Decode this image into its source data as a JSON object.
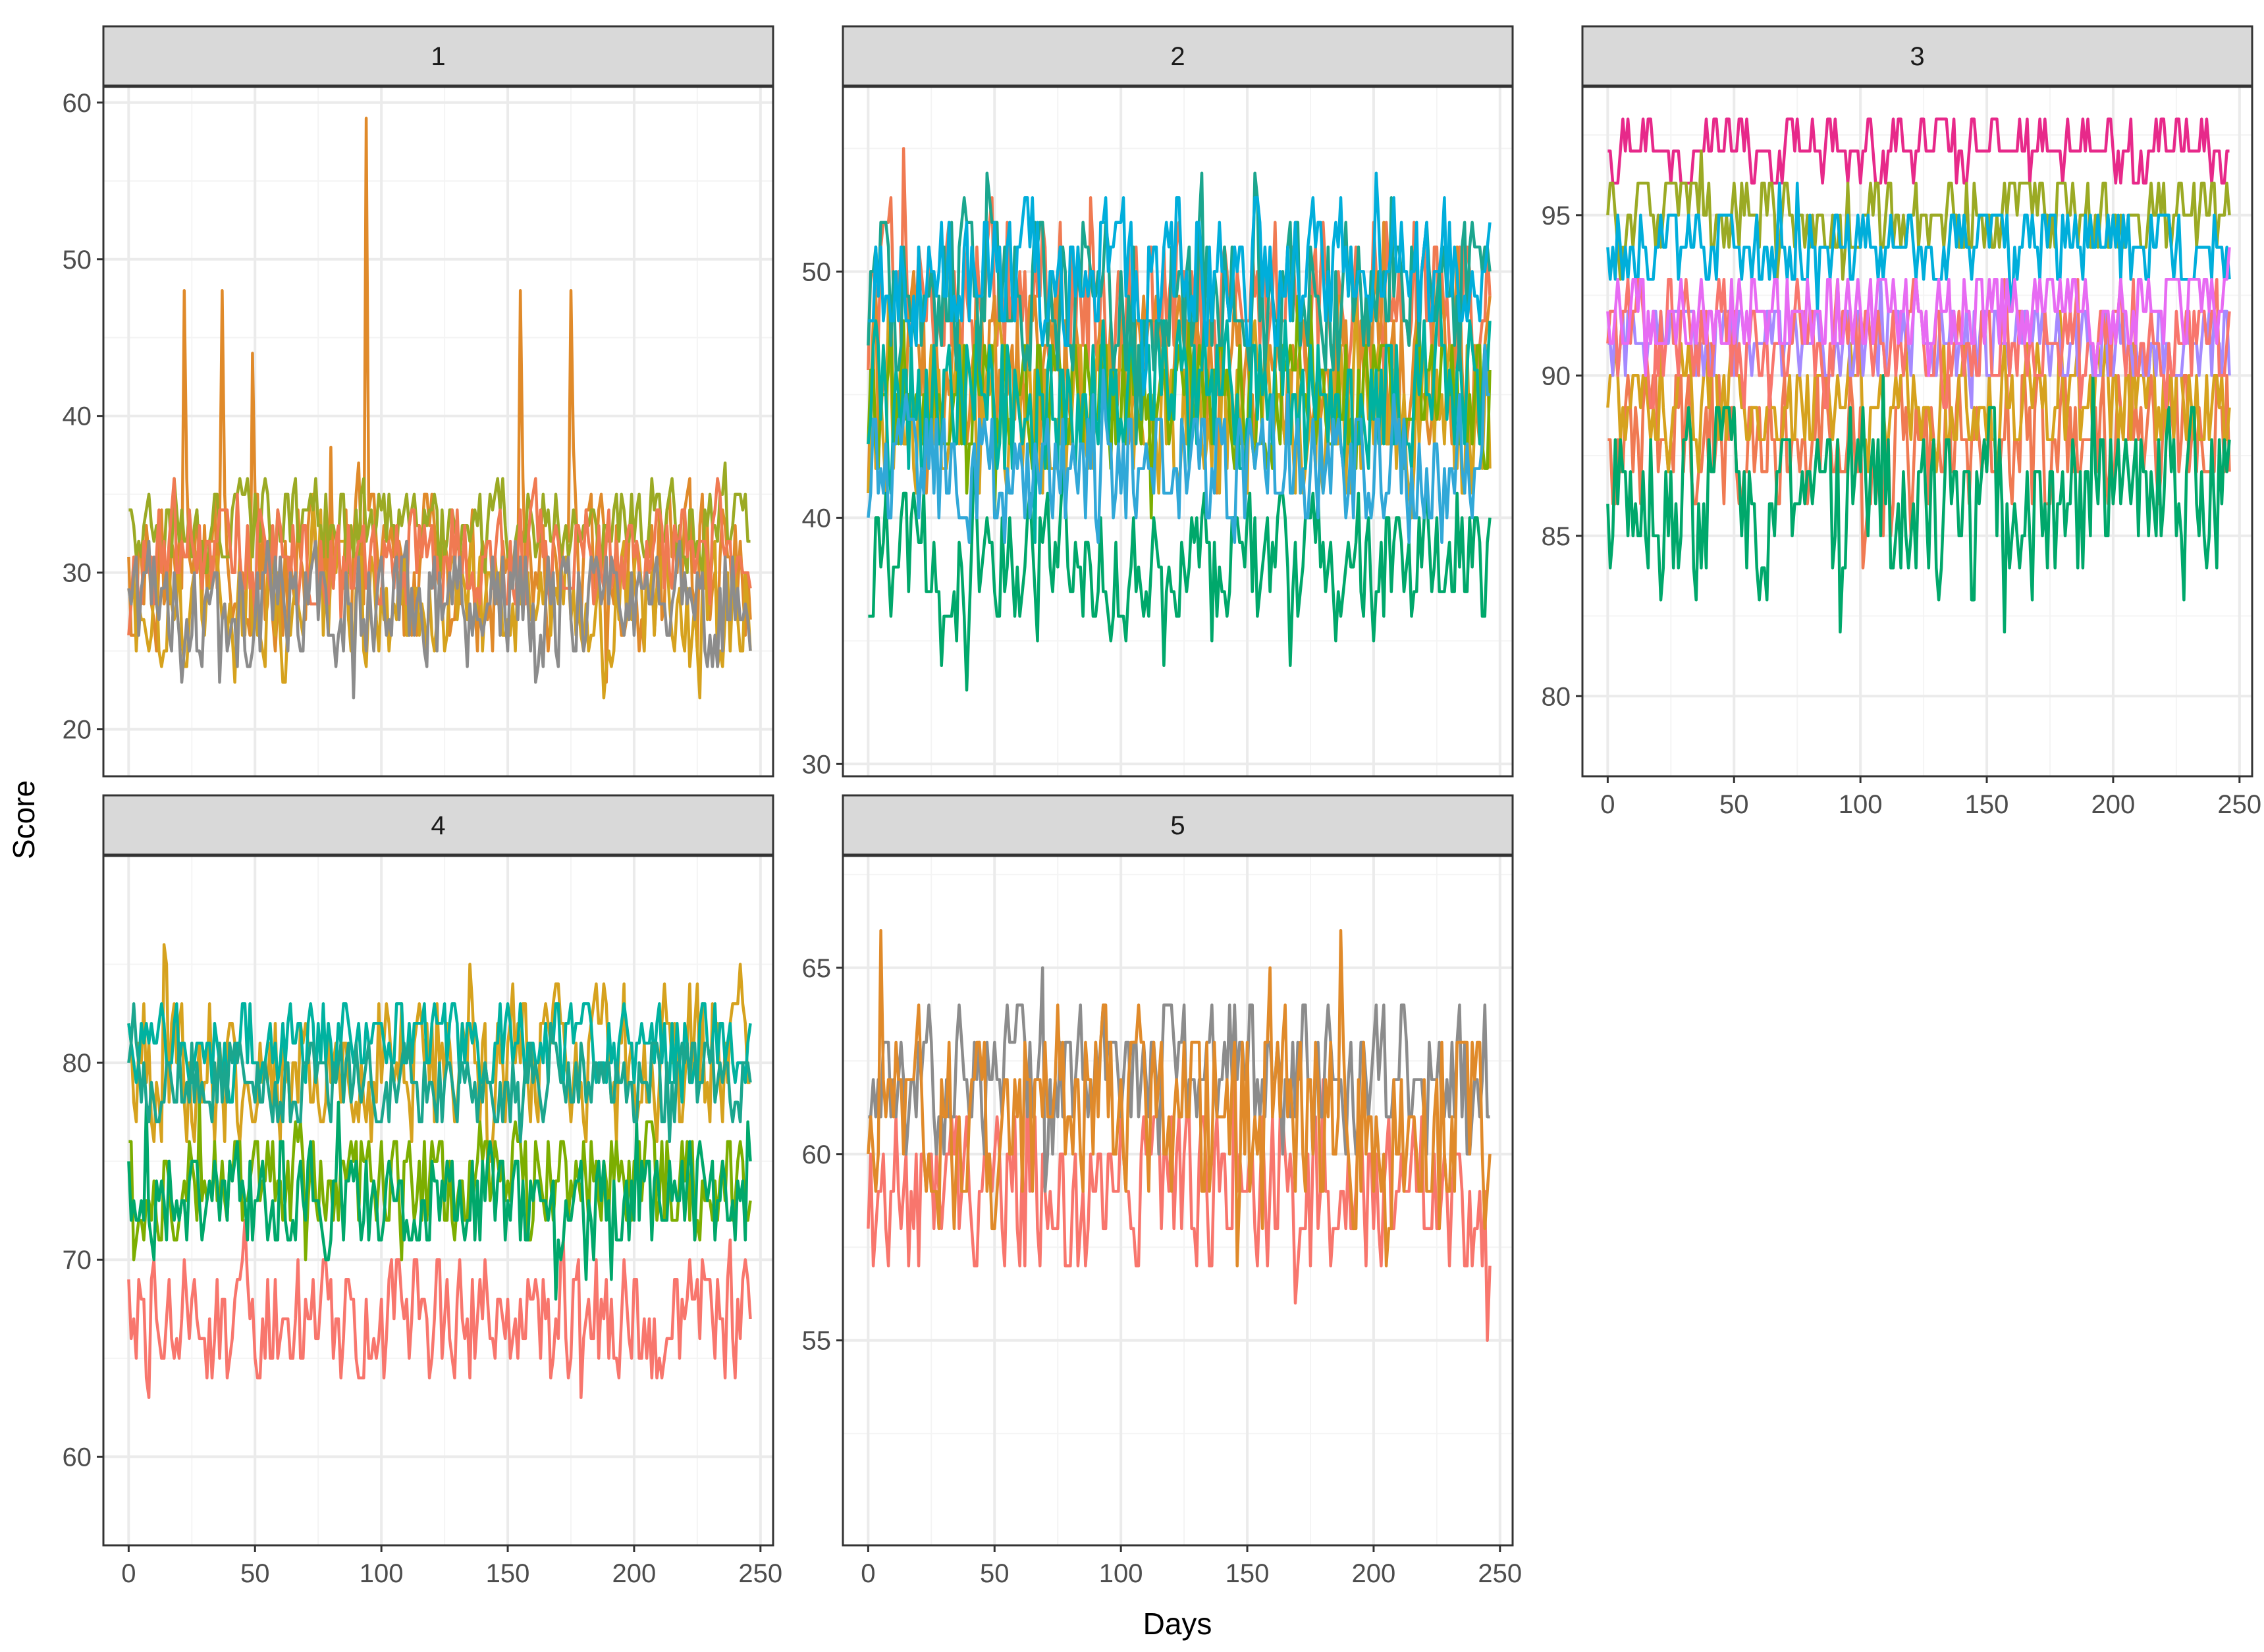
{
  "chart_data": {
    "type": "line",
    "layout": "facet_wrap",
    "xlabel": "Days",
    "ylabel": "Score",
    "grid": true,
    "legend": "none",
    "background": "#ffffff",
    "strip_color": "#d9d9d9",
    "panels": [
      {
        "label": "1",
        "xlim": [
          -10,
          255
        ],
        "x_ticks": [
          0,
          50,
          100,
          150,
          200,
          250
        ],
        "ylim": [
          17,
          61
        ],
        "y_ticks": [
          20,
          30,
          40,
          50,
          60
        ],
        "show_x_axis": false,
        "series": [
          {
            "color": "#E08A2A",
            "base": 30,
            "noise": 4.5,
            "min": 18,
            "max": 59,
            "spikes": [
              [
                22,
                48
              ],
              [
                37,
                48
              ],
              [
                49,
                44
              ],
              [
                94,
                59
              ],
              [
                155,
                48
              ],
              [
                175,
                48
              ]
            ]
          },
          {
            "color": "#D6A21E",
            "base": 28,
            "noise": 3.5,
            "min": 18,
            "max": 40
          },
          {
            "color": "#9BAA24",
            "base": 33,
            "noise": 2.5,
            "min": 24,
            "max": 40
          },
          {
            "color": "#F07A52",
            "base": 31,
            "noise": 3.0,
            "min": 22,
            "max": 40
          },
          {
            "color": "#8C8C8C",
            "base": 28,
            "noise": 3.5,
            "min": 19,
            "max": 36
          }
        ]
      },
      {
        "label": "2",
        "xlim": [
          -10,
          255
        ],
        "x_ticks": [
          0,
          50,
          100,
          150,
          200,
          250
        ],
        "ylim": [
          29.5,
          57.5
        ],
        "y_ticks": [
          30,
          40,
          50
        ],
        "show_x_axis": false,
        "series": [
          {
            "color": "#F07A52",
            "base": 49,
            "noise": 3.0,
            "min": 40,
            "max": 56
          },
          {
            "color": "#E08A2A",
            "base": 46,
            "noise": 3.0,
            "min": 38,
            "max": 55
          },
          {
            "color": "#D6A21E",
            "base": 44,
            "noise": 3.0,
            "min": 38,
            "max": 50
          },
          {
            "color": "#7CAE00",
            "base": 45,
            "noise": 2.5,
            "min": 38,
            "max": 50
          },
          {
            "color": "#00A86B",
            "base": 38,
            "noise": 2.5,
            "min": 31,
            "max": 44
          },
          {
            "color": "#00B2A0",
            "base": 45,
            "noise": 3.0,
            "min": 38,
            "max": 52
          },
          {
            "color": "#1BA68E",
            "base": 49,
            "noise": 3.0,
            "min": 42,
            "max": 56
          },
          {
            "color": "#00AEDB",
            "base": 50,
            "noise": 2.5,
            "min": 44,
            "max": 55
          },
          {
            "color": "#31A8D8",
            "base": 42,
            "noise": 2.5,
            "min": 36,
            "max": 48
          }
        ]
      },
      {
        "label": "3",
        "xlim": [
          -10,
          255
        ],
        "x_ticks": [
          0,
          50,
          100,
          150,
          200,
          250
        ],
        "ylim": [
          77.5,
          99.0
        ],
        "y_ticks": [
          80,
          85,
          90,
          95
        ],
        "show_x_axis": true,
        "series": [
          {
            "color": "#E7298A",
            "base": 97,
            "noise": 0.8,
            "min": 95,
            "max": 98
          },
          {
            "color": "#9BAA24",
            "base": 95,
            "noise": 1.0,
            "min": 92,
            "max": 97
          },
          {
            "color": "#00AEDB",
            "base": 94,
            "noise": 1.0,
            "min": 91,
            "max": 96
          },
          {
            "color": "#F07A52",
            "base": 88,
            "noise": 2.0,
            "min": 82,
            "max": 92
          },
          {
            "color": "#D6A21E",
            "base": 89,
            "noise": 1.5,
            "min": 84,
            "max": 92
          },
          {
            "color": "#00A86B",
            "base": 86,
            "noise": 2.5,
            "min": 78,
            "max": 90
          },
          {
            "color": "#A58AFF",
            "base": 91,
            "noise": 1.2,
            "min": 88,
            "max": 94
          },
          {
            "color": "#F8766D",
            "base": 91,
            "noise": 1.5,
            "min": 86,
            "max": 94
          },
          {
            "color": "#E76BF3",
            "base": 92,
            "noise": 1.2,
            "min": 88,
            "max": 95
          }
        ]
      },
      {
        "label": "4",
        "xlim": [
          -10,
          255
        ],
        "x_ticks": [
          0,
          50,
          100,
          150,
          200,
          250
        ],
        "ylim": [
          55.5,
          90.5
        ],
        "y_ticks": [
          60,
          70,
          80
        ],
        "show_x_axis": true,
        "series": [
          {
            "color": "#F8766D",
            "base": 67,
            "noise": 3.0,
            "min": 57,
            "max": 72
          },
          {
            "color": "#D6A21E",
            "base": 80,
            "noise": 3.5,
            "min": 70,
            "max": 88
          },
          {
            "color": "#7CAE00",
            "base": 74,
            "noise": 2.5,
            "min": 66,
            "max": 80
          },
          {
            "color": "#00A86B",
            "base": 73,
            "noise": 2.5,
            "min": 64,
            "max": 80
          },
          {
            "color": "#00B2A0",
            "base": 81,
            "noise": 2.0,
            "min": 76,
            "max": 86
          },
          {
            "color": "#1BA68E",
            "base": 79,
            "noise": 2.0,
            "min": 74,
            "max": 85
          }
        ]
      },
      {
        "label": "5",
        "xlim": [
          -10,
          255
        ],
        "x_ticks": [
          0,
          50,
          100,
          150,
          200,
          250
        ],
        "ylim": [
          49.5,
          68.0
        ],
        "y_ticks": [
          55,
          60,
          65
        ],
        "show_x_axis": true,
        "series": [
          {
            "color": "#F8766D",
            "base": 59,
            "noise": 2.0,
            "min": 55,
            "max": 64
          },
          {
            "color": "#8C8C8C",
            "base": 62,
            "noise": 1.8,
            "min": 57,
            "max": 66
          },
          {
            "color": "#E08A2A",
            "base": 61,
            "noise": 2.5,
            "min": 51,
            "max": 67
          }
        ]
      }
    ]
  }
}
